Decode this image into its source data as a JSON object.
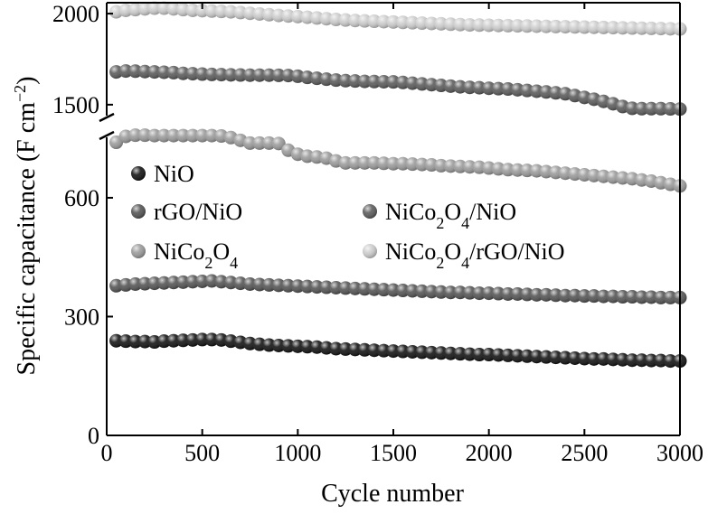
{
  "chart_data": {
    "type": "scatter",
    "xlabel": "Cycle number",
    "ylabel": "Specific capacitance (F cm",
    "ylabel_unit_sup": "−2",
    "ylabel_close": ")",
    "xlim": [
      0,
      3000
    ],
    "xticks": [
      "0",
      "500",
      "1000",
      "1500",
      "2000",
      "2500",
      "3000"
    ],
    "lower_axis": {
      "ylim": [
        0,
        780
      ],
      "yticks": [
        "0",
        "300",
        "600"
      ]
    },
    "upper_axis": {
      "ylim": [
        1420,
        2060
      ],
      "yticks": [
        "1500",
        "2000"
      ]
    },
    "axis_break": true,
    "legend_position": "upper-left-inside",
    "series": [
      {
        "name": "NiO",
        "axis": "lower",
        "color": "#141414",
        "x": [
          50,
          100,
          150,
          200,
          250,
          300,
          350,
          400,
          450,
          500,
          550,
          600,
          650,
          700,
          750,
          800,
          850,
          900,
          950,
          1000,
          1050,
          1100,
          1150,
          1200,
          1250,
          1300,
          1350,
          1400,
          1450,
          1500,
          1550,
          1600,
          1650,
          1700,
          1750,
          1800,
          1850,
          1900,
          1950,
          2000,
          2050,
          2100,
          2150,
          2200,
          2250,
          2300,
          2350,
          2400,
          2450,
          2500,
          2550,
          2600,
          2650,
          2700,
          2750,
          2800,
          2850,
          2900,
          2950,
          3000
        ],
        "y": [
          239,
          238,
          237,
          237,
          236,
          238,
          239,
          240,
          241,
          242,
          242,
          241,
          238,
          235,
          232,
          230,
          228,
          227,
          226,
          225,
          224,
          223,
          221,
          219,
          218,
          217,
          216,
          215,
          214,
          213,
          212,
          211,
          210,
          209,
          208,
          207,
          206,
          205,
          204,
          204,
          203,
          202,
          201,
          200,
          199,
          198,
          197,
          196,
          195,
          194,
          193,
          193,
          192,
          191,
          190,
          190,
          189,
          189,
          188,
          188
        ]
      },
      {
        "name": "rGO/NiO",
        "axis": "lower",
        "color": "#555555",
        "x": [
          50,
          100,
          150,
          200,
          250,
          300,
          350,
          400,
          450,
          500,
          550,
          600,
          650,
          700,
          750,
          800,
          850,
          900,
          950,
          1000,
          1050,
          1100,
          1150,
          1200,
          1250,
          1300,
          1350,
          1400,
          1450,
          1500,
          1550,
          1600,
          1650,
          1700,
          1750,
          1800,
          1850,
          1900,
          1950,
          2000,
          2050,
          2100,
          2150,
          2200,
          2250,
          2300,
          2350,
          2400,
          2450,
          2500,
          2550,
          2600,
          2650,
          2700,
          2750,
          2800,
          2850,
          2900,
          2950,
          3000
        ],
        "y": [
          378,
          380,
          382,
          383,
          384,
          385,
          386,
          387,
          388,
          389,
          390,
          388,
          386,
          384,
          382,
          381,
          380,
          379,
          378,
          377,
          376,
          375,
          374,
          373,
          372,
          371,
          370,
          369,
          368,
          367,
          366,
          365,
          364,
          363,
          362,
          361,
          361,
          360,
          359,
          359,
          358,
          357,
          357,
          356,
          355,
          355,
          354,
          353,
          353,
          352,
          352,
          351,
          351,
          350,
          350,
          349,
          349,
          348,
          348,
          348
        ]
      },
      {
        "name": "NiCo₂O₄",
        "axis": "lower",
        "color": "#9b9b9b",
        "x": [
          50,
          100,
          150,
          200,
          250,
          300,
          350,
          400,
          450,
          500,
          550,
          600,
          650,
          700,
          750,
          800,
          850,
          900,
          950,
          1000,
          1050,
          1100,
          1150,
          1200,
          1250,
          1300,
          1350,
          1400,
          1450,
          1500,
          1550,
          1600,
          1650,
          1700,
          1750,
          1800,
          1850,
          1900,
          1950,
          2000,
          2050,
          2100,
          2150,
          2200,
          2250,
          2300,
          2350,
          2400,
          2450,
          2500,
          2550,
          2600,
          2650,
          2700,
          2750,
          2800,
          2850,
          2900,
          2950,
          3000
        ],
        "y": [
          740,
          755,
          758,
          758,
          757,
          757,
          757,
          757,
          757,
          757,
          757,
          756,
          752,
          745,
          738,
          738,
          738,
          737,
          720,
          710,
          705,
          703,
          700,
          693,
          688,
          688,
          688,
          688,
          687,
          686,
          686,
          685,
          684,
          683,
          681,
          680,
          679,
          678,
          677,
          675,
          673,
          671,
          670,
          669,
          668,
          666,
          664,
          662,
          660,
          658,
          656,
          654,
          652,
          650,
          648,
          645,
          642,
          638,
          634,
          630
        ]
      },
      {
        "name": "NiCo₂O₄/NiO",
        "axis": "upper",
        "color": "#5c5c5c",
        "x": [
          50,
          100,
          150,
          200,
          250,
          300,
          350,
          400,
          450,
          500,
          550,
          600,
          650,
          700,
          750,
          800,
          850,
          900,
          950,
          1000,
          1050,
          1100,
          1150,
          1200,
          1250,
          1300,
          1350,
          1400,
          1450,
          1500,
          1550,
          1600,
          1650,
          1700,
          1750,
          1800,
          1850,
          1900,
          1950,
          2000,
          2050,
          2100,
          2150,
          2200,
          2250,
          2300,
          2350,
          2400,
          2450,
          2500,
          2550,
          2600,
          2650,
          2700,
          2750,
          2800,
          2850,
          2900,
          2950,
          3000
        ],
        "y": [
          1680,
          1685,
          1684,
          1682,
          1680,
          1678,
          1676,
          1672,
          1670,
          1668,
          1666,
          1665,
          1664,
          1663,
          1662,
          1662,
          1662,
          1661,
          1660,
          1656,
          1650,
          1645,
          1640,
          1635,
          1632,
          1630,
          1628,
          1627,
          1626,
          1625,
          1622,
          1618,
          1614,
          1610,
          1606,
          1602,
          1598,
          1595,
          1593,
          1590,
          1588,
          1586,
          1582,
          1578,
          1574,
          1570,
          1565,
          1560,
          1550,
          1540,
          1530,
          1518,
          1505,
          1490,
          1480,
          1478,
          1478,
          1478,
          1477,
          1476
        ]
      },
      {
        "name": "NiCo₂O₄/rGO/NiO",
        "axis": "upper",
        "color": "#cdcdcd",
        "x": [
          50,
          100,
          150,
          200,
          250,
          300,
          350,
          400,
          450,
          500,
          550,
          600,
          650,
          700,
          750,
          800,
          850,
          900,
          950,
          1000,
          1050,
          1100,
          1150,
          1200,
          1250,
          1300,
          1350,
          1400,
          1450,
          1500,
          1550,
          1600,
          1650,
          1700,
          1750,
          1800,
          1850,
          1900,
          1950,
          2000,
          2050,
          2100,
          2150,
          2200,
          2250,
          2300,
          2350,
          2400,
          2450,
          2500,
          2550,
          2600,
          2650,
          2700,
          2750,
          2800,
          2850,
          2900,
          2950,
          3000
        ],
        "y": [
          2010,
          2018,
          2022,
          2026,
          2030,
          2030,
          2026,
          2022,
          2018,
          2016,
          2014,
          2012,
          2010,
          2006,
          2002,
          1998,
          1994,
          1990,
          1987,
          1984,
          1980,
          1976,
          1972,
          1968,
          1965,
          1962,
          1960,
          1958,
          1956,
          1954,
          1952,
          1950,
          1948,
          1946,
          1944,
          1942,
          1940,
          1938,
          1937,
          1936,
          1935,
          1934,
          1933,
          1932,
          1931,
          1930,
          1929,
          1928,
          1927,
          1926,
          1925,
          1924,
          1923,
          1922,
          1921,
          1920,
          1919,
          1918,
          1917,
          1916
        ]
      }
    ]
  }
}
